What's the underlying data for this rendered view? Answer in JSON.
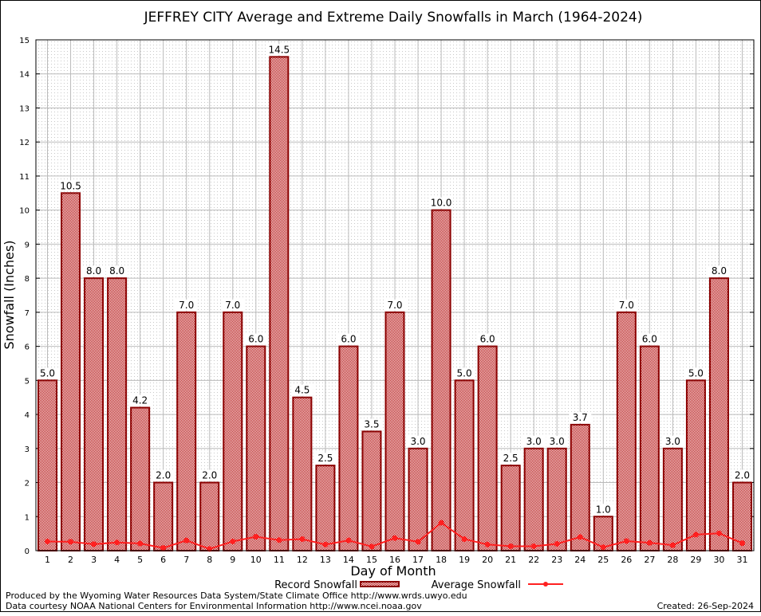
{
  "chart_data": {
    "type": "bar",
    "title": "JEFFREY CITY Average and Extreme Daily Snowfalls in March (1964-2024)",
    "xlabel": "Day of Month",
    "ylabel": "Snowfall (Inches)",
    "ylim": [
      0,
      15
    ],
    "yticks": [
      0,
      1,
      2,
      3,
      4,
      5,
      6,
      7,
      8,
      9,
      10,
      11,
      12,
      13,
      14,
      15
    ],
    "grid": true,
    "legend": "bottom",
    "categories": [
      "1",
      "2",
      "3",
      "4",
      "5",
      "6",
      "7",
      "8",
      "9",
      "10",
      "11",
      "12",
      "13",
      "14",
      "15",
      "16",
      "17",
      "18",
      "19",
      "20",
      "21",
      "22",
      "23",
      "24",
      "25",
      "26",
      "27",
      "28",
      "29",
      "30",
      "31"
    ],
    "series": [
      {
        "name": "Record Snowfall",
        "type": "bar",
        "color": "#a00000",
        "values": [
          5.0,
          10.5,
          8.0,
          8.0,
          4.2,
          2.0,
          7.0,
          2.0,
          7.0,
          6.0,
          14.5,
          4.5,
          2.5,
          6.0,
          3.5,
          7.0,
          3.0,
          10.0,
          5.0,
          6.0,
          2.5,
          3.0,
          3.0,
          3.7,
          1.0,
          7.0,
          6.0,
          3.0,
          5.0,
          8.0,
          2.0
        ],
        "labels": [
          "5.0",
          "10.5",
          "8.0",
          "8.0",
          "4.2",
          "2.0",
          "7.0",
          "2.0",
          "7.0",
          "6.0",
          "14.5",
          "4.5",
          "2.5",
          "6.0",
          "3.5",
          "7.0",
          "3.0",
          "10.0",
          "5.0",
          "6.0",
          "2.5",
          "3.0",
          "3.0",
          "3.7",
          "1.0",
          "7.0",
          "6.0",
          "3.0",
          "5.0",
          "8.0",
          "2.0"
        ]
      },
      {
        "name": "Average Snowfall",
        "type": "line",
        "color": "#ff2020",
        "values": [
          0.27,
          0.26,
          0.19,
          0.24,
          0.21,
          0.08,
          0.3,
          0.05,
          0.27,
          0.41,
          0.31,
          0.34,
          0.18,
          0.3,
          0.12,
          0.37,
          0.26,
          0.82,
          0.34,
          0.18,
          0.13,
          0.13,
          0.2,
          0.4,
          0.1,
          0.28,
          0.23,
          0.16,
          0.47,
          0.51,
          0.22
        ]
      }
    ]
  },
  "footer": {
    "credit1": "Produced by the Wyoming Water Resources Data System/State Climate Office http://www.wrds.uwyo.edu",
    "credit2": "Data courtesy NOAA National Centers for Environmental Information http://www.ncei.noaa.gov",
    "created": "Created:  26-Sep-2024"
  }
}
